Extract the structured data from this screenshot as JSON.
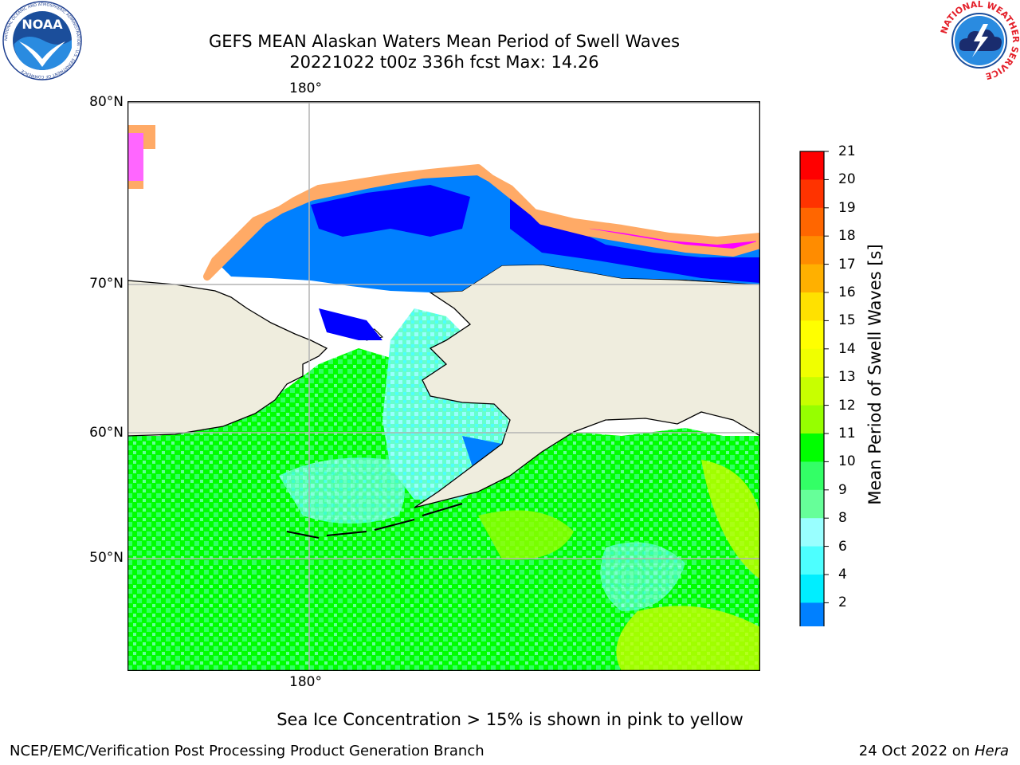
{
  "title": {
    "line1": "GEFS MEAN Alaskan Waters Mean Period of Swell Waves",
    "line2": "20221022 t00z 336h fcst   Max: 14.26"
  },
  "logos": {
    "left": "NOAA",
    "left_ring": "NATIONAL OCEANIC AND ATMOSPHERIC ADMINISTRATION · U.S. DEPARTMENT OF COMMERCE",
    "right_ring": "NATIONAL WEATHER SERVICE"
  },
  "map": {
    "lon_label_top": "180°",
    "lon_label_bottom": "180°",
    "lat_labels": [
      "80°N",
      "70°N",
      "60°N",
      "50°N"
    ],
    "colors": {
      "land": "#efedde",
      "coast": "#000000",
      "grid": "#b4b4b4",
      "ice": [
        "#ff00ff",
        "#ff66ff",
        "#ffaa66",
        "#ffd24d",
        "#ffee44"
      ]
    }
  },
  "colorbar": {
    "label": "Mean Period of Swell Waves [s]",
    "ticks": [
      "21",
      "20",
      "19",
      "18",
      "17",
      "16",
      "15",
      "14",
      "13",
      "12",
      "11",
      "10",
      "9",
      "8",
      "6",
      "4",
      "2"
    ],
    "colors_top_to_bottom": [
      "#ff0000",
      "#ff3300",
      "#ff6600",
      "#ff8c00",
      "#ffb000",
      "#ffe100",
      "#ffff00",
      "#f0ff00",
      "#c8ff00",
      "#96ff00",
      "#00ff00",
      "#33ff66",
      "#66ff99",
      "#99ffff",
      "#4dffff",
      "#00eeff",
      "#0080ff"
    ],
    "under_color": "#0000ff"
  },
  "notes": {
    "ice": "Sea Ice Concentration > 15% is shown in pink to yellow"
  },
  "footer": {
    "left": "NCEP/EMC/Verification Post Processing Product Generation Branch",
    "right_date": "24 Oct 2022 on ",
    "right_host": "Hera"
  }
}
